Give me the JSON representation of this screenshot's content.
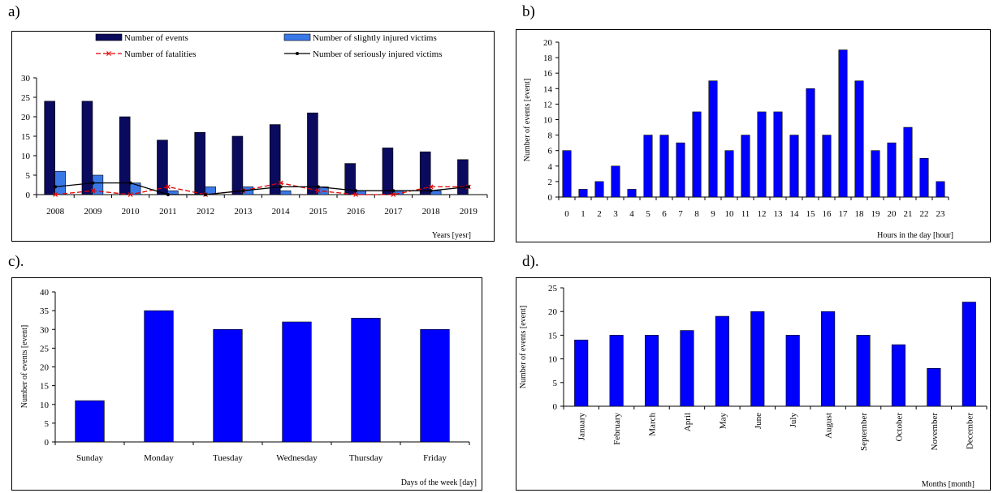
{
  "panels": {
    "a": {
      "letter": "a)"
    },
    "b": {
      "letter": "b)"
    },
    "c": {
      "letter": "c)."
    },
    "d": {
      "letter": "d)."
    }
  },
  "chart_data": [
    {
      "id": "a",
      "type": "bar",
      "xlabel": "Years [yesr]",
      "ylabel": "",
      "ylim": [
        0,
        30
      ],
      "yticks": [
        0,
        5,
        10,
        15,
        20,
        25,
        30
      ],
      "categories": [
        "2008",
        "2009",
        "2010",
        "2011",
        "2012",
        "2013",
        "2014",
        "2015",
        "2016",
        "2017",
        "2018",
        "2019"
      ],
      "legend_position": "top",
      "series": [
        {
          "name": "Number of events",
          "kind": "bar",
          "color": "#0a0a5e",
          "values": [
            24,
            24,
            20,
            14,
            16,
            15,
            18,
            21,
            8,
            12,
            11,
            9
          ]
        },
        {
          "name": "Number of slightly injured victims",
          "kind": "bar",
          "color": "#3a78e8",
          "values": [
            6,
            5,
            3,
            1,
            2,
            2,
            1,
            2,
            1,
            1,
            1,
            0
          ]
        },
        {
          "name": "Number of fatalities",
          "kind": "line-dashed",
          "color": "#e00000",
          "values": [
            0,
            1,
            0,
            2,
            0,
            1,
            3,
            1,
            0,
            0,
            2,
            2
          ]
        },
        {
          "name": "Number of seriously injured victims",
          "kind": "line",
          "color": "#000000",
          "values": [
            2,
            3,
            3,
            0,
            0,
            1,
            2,
            2,
            1,
            1,
            1,
            2
          ]
        }
      ]
    },
    {
      "id": "b",
      "type": "bar",
      "xlabel": "Hours in the day [hour]",
      "ylabel": "Number of events [event]",
      "ylim": [
        0,
        20
      ],
      "yticks": [
        0,
        2,
        4,
        6,
        8,
        10,
        12,
        14,
        16,
        18,
        20
      ],
      "categories": [
        "0",
        "1",
        "2",
        "3",
        "4",
        "5",
        "6",
        "7",
        "8",
        "9",
        "10",
        "11",
        "12",
        "13",
        "14",
        "15",
        "16",
        "17",
        "18",
        "19",
        "20",
        "21",
        "22",
        "23"
      ],
      "color": "#0000ff",
      "values": [
        6,
        1,
        2,
        4,
        1,
        8,
        8,
        7,
        11,
        15,
        6,
        8,
        11,
        11,
        8,
        14,
        8,
        19,
        15,
        6,
        7,
        9,
        5,
        2
      ]
    },
    {
      "id": "c",
      "type": "bar",
      "xlabel": "Days of the week [day]",
      "ylabel": "Number of events [event]",
      "ylim": [
        0,
        40
      ],
      "yticks": [
        0,
        5,
        10,
        15,
        20,
        25,
        30,
        35,
        40
      ],
      "categories": [
        "Sunday",
        "Monday",
        "Tuesday",
        "Wednesday",
        "Thursday",
        "Friday"
      ],
      "color": "#0000ff",
      "values": [
        11,
        35,
        30,
        32,
        33,
        30
      ]
    },
    {
      "id": "d",
      "type": "bar",
      "xlabel": "Months [month]",
      "ylabel": "Number of events [event]",
      "ylim": [
        0,
        25
      ],
      "yticks": [
        0,
        5,
        10,
        15,
        20,
        25
      ],
      "categories": [
        "January",
        "February",
        "March",
        "April",
        "May",
        "June",
        "July",
        "August",
        "September",
        "October",
        "November",
        "December"
      ],
      "color": "#0000ff",
      "values": [
        14,
        15,
        15,
        16,
        19,
        20,
        15,
        20,
        15,
        13,
        8,
        22
      ]
    }
  ]
}
